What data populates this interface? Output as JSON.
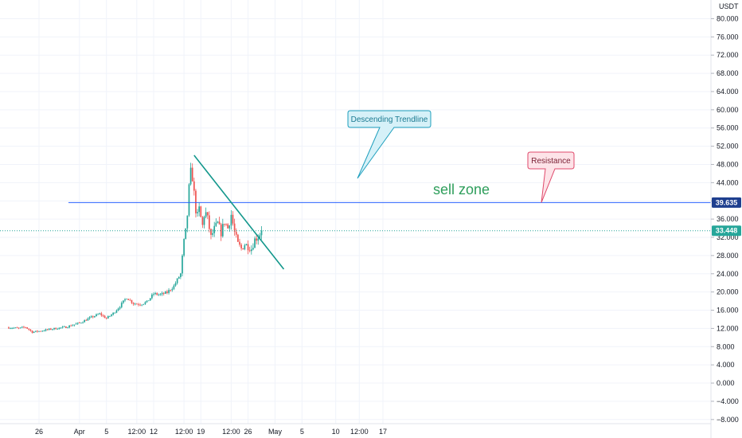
{
  "chart_data": {
    "type": "candlestick",
    "currency": "USDT",
    "ylim": [
      -9,
      82
    ],
    "y_ticks": [
      -8,
      -4,
      0,
      4,
      8,
      12,
      16,
      20,
      24,
      28,
      32,
      36,
      40,
      44,
      48,
      52,
      56,
      60,
      64,
      68,
      72,
      76,
      80
    ],
    "y_tick_labels": [
      "−8.000",
      "−4.000",
      "0.000",
      "4.000",
      "8.000",
      "12.000",
      "16.000",
      "20.000",
      "24.000",
      "28.000",
      "32.000",
      "36.000",
      "40.000",
      "44.000",
      "48.000",
      "52.000",
      "56.000",
      "60.000",
      "64.000",
      "68.000",
      "72.000",
      "76.000",
      "80.000"
    ],
    "x_ticks": [
      {
        "label": "26",
        "day": 26
      },
      {
        "label": "Apr",
        "day": 32
      },
      {
        "label": "5",
        "day": 36
      },
      {
        "label": "12:00",
        "day": 40.5
      },
      {
        "label": "12",
        "day": 43
      },
      {
        "label": "12:00",
        "day": 47.5
      },
      {
        "label": "19",
        "day": 50
      },
      {
        "label": "12:00",
        "day": 54.5
      },
      {
        "label": "26",
        "day": 57
      },
      {
        "label": "May",
        "day": 61
      },
      {
        "label": "5",
        "day": 65
      },
      {
        "label": "10",
        "day": 70
      },
      {
        "label": "12:00",
        "day": 73.5
      },
      {
        "label": "17",
        "day": 77
      }
    ],
    "price_path": [
      [
        21.5,
        12.2
      ],
      [
        23,
        12.0
      ],
      [
        24,
        12.3
      ],
      [
        25,
        11.2
      ],
      [
        26,
        11.4
      ],
      [
        28,
        11.9
      ],
      [
        30,
        12.3
      ],
      [
        32,
        13.2
      ],
      [
        34,
        14.6
      ],
      [
        35,
        15.2
      ],
      [
        36,
        14.2
      ],
      [
        37,
        15.3
      ],
      [
        38,
        16.9
      ],
      [
        39,
        18.8
      ],
      [
        40,
        17.5
      ],
      [
        41,
        17.3
      ],
      [
        42,
        17.8
      ],
      [
        43,
        19.6
      ],
      [
        44,
        19.4
      ],
      [
        45,
        19.9
      ],
      [
        46,
        21.3
      ],
      [
        47,
        24.0
      ],
      [
        47.5,
        31.0
      ],
      [
        47.9,
        34.5
      ],
      [
        48.2,
        42.0
      ],
      [
        48.6,
        47.5
      ],
      [
        49.0,
        41.5
      ],
      [
        49.4,
        36.0
      ],
      [
        49.8,
        38.5
      ],
      [
        50.2,
        34.0
      ],
      [
        50.6,
        38.0
      ],
      [
        51.0,
        36.0
      ],
      [
        51.5,
        32.0
      ],
      [
        52.0,
        33.8
      ],
      [
        52.5,
        35.0
      ],
      [
        53.0,
        33.0
      ],
      [
        53.5,
        35.5
      ],
      [
        54.0,
        34.0
      ],
      [
        54.5,
        37.0
      ],
      [
        55.0,
        33.0
      ],
      [
        55.5,
        30.5
      ],
      [
        56.0,
        29.5
      ],
      [
        56.5,
        30.5
      ],
      [
        57.0,
        30.0
      ],
      [
        57.5,
        29.5
      ],
      [
        58.0,
        31.5
      ],
      [
        58.5,
        32.2
      ],
      [
        59.0,
        33.4
      ]
    ],
    "annotations": {
      "resistance_level": 39.635,
      "resistance_level_label": "39.635",
      "current_price": 33.448,
      "current_price_label": "33.448",
      "descending_trendline": {
        "start": [
          49.0,
          50.0
        ],
        "end": [
          62.3,
          25.0
        ]
      },
      "descending_trendline_callout": "Descending Trendline",
      "resistance_callout": "Resistance",
      "zone_label": "sell zone"
    },
    "colors": {
      "up": "#26a69a",
      "down": "#ef5350",
      "trendline": "#13978c",
      "resistance": "#2962ff",
      "current_price": "#26a69a",
      "sell_zone_text": "#2e9e5b",
      "trend_callout_fill": "#d6f1f8",
      "trend_callout_stroke": "#1e9fbd",
      "resistance_callout_fill": "#fde3e8",
      "resistance_callout_stroke": "#e0496b"
    }
  }
}
